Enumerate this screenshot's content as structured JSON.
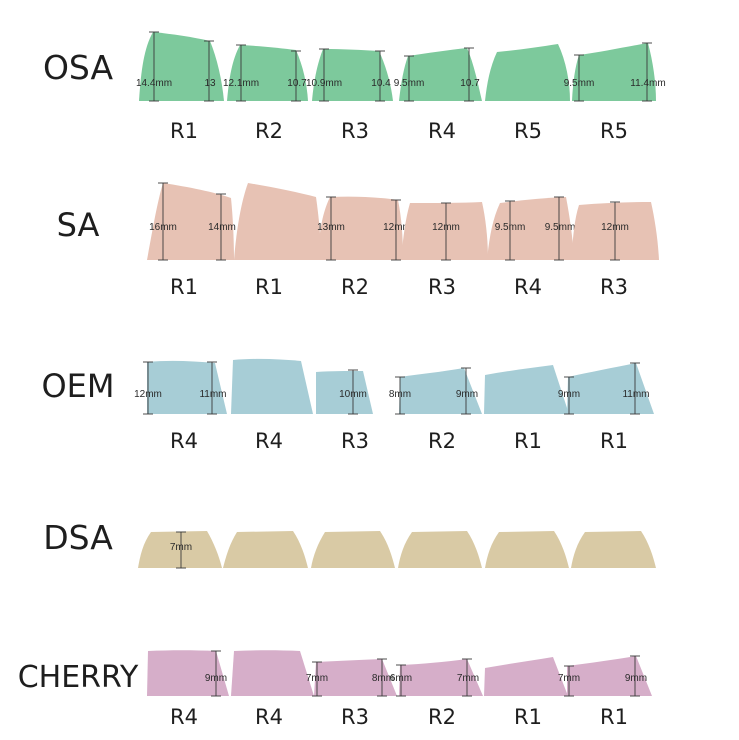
{
  "profiles": [
    {
      "name": "OSA",
      "color": "#7dc99c",
      "keys": [
        {
          "row": "R1",
          "left_label": "14.4mm",
          "right_label": "13"
        },
        {
          "row": "R2",
          "left_label": "12.1mm",
          "right_label": "10.7"
        },
        {
          "row": "R3",
          "left_label": "10.9mm",
          "right_label": "10.4"
        },
        {
          "row": "R4",
          "left_label": "9.5mm",
          "right_label": "10.7"
        },
        {
          "row": "R5",
          "left_label": "",
          "right_label": ""
        },
        {
          "row": "R5",
          "left_label": "9.5mm",
          "right_label": "11.4mm"
        }
      ]
    },
    {
      "name": "SA",
      "color": "#e7c2b4",
      "keys": [
        {
          "row": "R1",
          "left_label": "16mm",
          "right_label": "14mm"
        },
        {
          "row": "R1",
          "left_label": "",
          "right_label": ""
        },
        {
          "row": "R2",
          "left_label": "13mm",
          "right_label": "12mm"
        },
        {
          "row": "R3",
          "left_label": "12mm",
          "right_label": ""
        },
        {
          "row": "R4",
          "left_label": "9.5mm",
          "right_label": "9.5mm"
        },
        {
          "row": "R3",
          "left_label": "12mm",
          "right_label": ""
        }
      ]
    },
    {
      "name": "OEM",
      "color": "#a7cdd6",
      "keys": [
        {
          "row": "R4",
          "left_label": "12mm",
          "right_label": "11mm"
        },
        {
          "row": "R4",
          "left_label": "",
          "right_label": ""
        },
        {
          "row": "R3",
          "left_label": "10mm",
          "right_label": ""
        },
        {
          "row": "R2",
          "left_label": "8mm",
          "right_label": "9mm"
        },
        {
          "row": "R1",
          "left_label": "",
          "right_label": ""
        },
        {
          "row": "R1",
          "left_label": "9mm",
          "right_label": "11mm"
        }
      ]
    },
    {
      "name": "DSA",
      "color": "#d9caa5",
      "keys": [
        {
          "row": "",
          "left_label": "7mm",
          "right_label": ""
        },
        {
          "row": "",
          "left_label": "",
          "right_label": ""
        },
        {
          "row": "",
          "left_label": "",
          "right_label": ""
        },
        {
          "row": "",
          "left_label": "",
          "right_label": ""
        },
        {
          "row": "",
          "left_label": "",
          "right_label": ""
        },
        {
          "row": "",
          "left_label": "",
          "right_label": ""
        }
      ]
    },
    {
      "name": "CHERRY",
      "color": "#d6aec9",
      "keys": [
        {
          "row": "R4",
          "left_label": "9mm",
          "right_label": ""
        },
        {
          "row": "R4",
          "left_label": "",
          "right_label": ""
        },
        {
          "row": "R3",
          "left_label": "7mm",
          "right_label": "8mm"
        },
        {
          "row": "R2",
          "left_label": "6mm",
          "right_label": "7mm"
        },
        {
          "row": "R1",
          "left_label": "",
          "right_label": ""
        },
        {
          "row": "R1",
          "left_label": "7mm",
          "right_label": "9mm"
        }
      ]
    }
  ]
}
